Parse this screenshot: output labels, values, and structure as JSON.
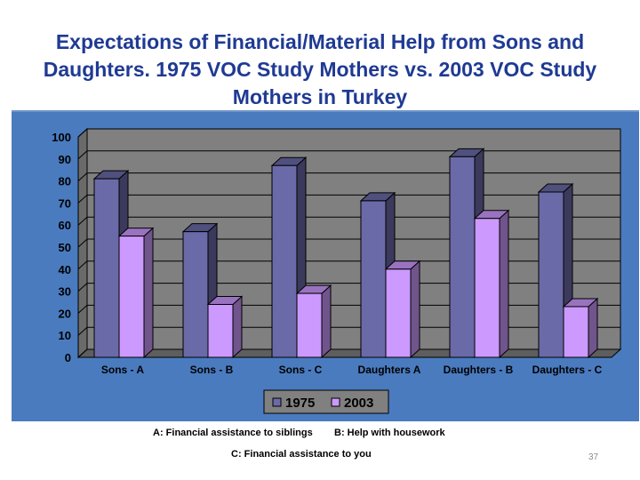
{
  "title": "Expectations of Financial/Material Help from Sons and Daughters. 1975 VOC Study Mothers vs. 2003 VOC Study Mothers in Turkey",
  "notes": {
    "a": "A: Financial assistance to siblings",
    "b": "B: Help with housework",
    "c": "C: Financial assistance to you"
  },
  "page_number": "37",
  "colors": {
    "panel": "#4a7bbf",
    "plot_face": "#808080",
    "plot_wall": "#6a6a6a",
    "series_1975": "#6b6aa8",
    "series_2003": "#cc99ff",
    "title": "#1f3a93"
  },
  "chart_data": {
    "type": "bar",
    "categories": [
      "Sons - A",
      "Sons - B",
      "Sons - C",
      "Daughters A",
      "Daughters - B",
      "Daughters - C"
    ],
    "series": [
      {
        "name": "1975",
        "values": [
          81,
          57,
          87,
          71,
          91,
          75
        ]
      },
      {
        "name": "2003",
        "values": [
          55,
          24,
          29,
          40,
          63,
          23
        ]
      }
    ],
    "ylim": [
      0,
      100
    ],
    "yticks": [
      0,
      10,
      20,
      30,
      40,
      50,
      60,
      70,
      80,
      90,
      100
    ],
    "grid": true,
    "legend": "bottom",
    "style": "3d-clustered"
  }
}
